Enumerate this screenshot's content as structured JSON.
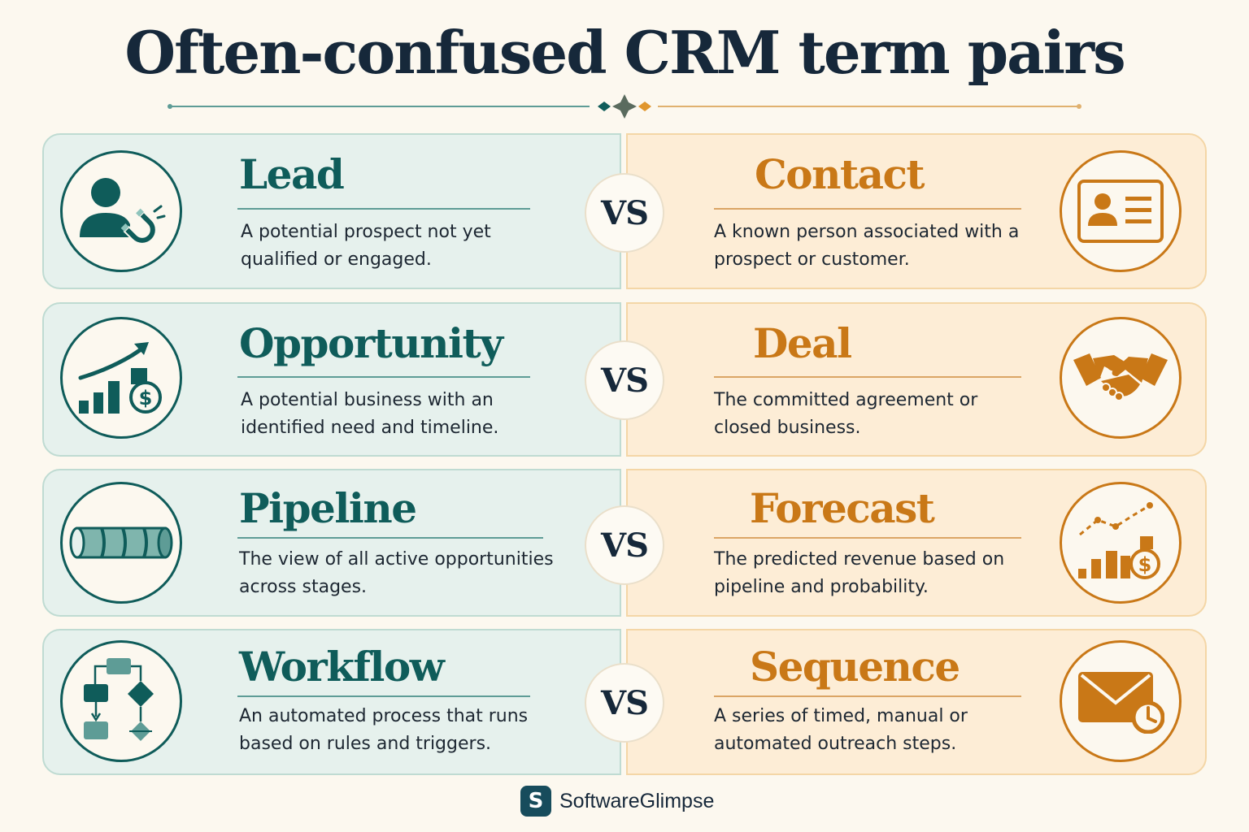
{
  "title": "Often-confused CRM term pairs",
  "colors": {
    "teal": "#0f5c5a",
    "orange": "#c97817",
    "navy": "#16283a"
  },
  "vs_label": "VS",
  "pairs": [
    {
      "left": {
        "term": "Lead",
        "description": "A potential prospect not yet qualified or engaged.",
        "icon": "person-magnet-icon"
      },
      "right": {
        "term": "Contact",
        "description": "A known person associated with a prospect or customer.",
        "icon": "contact-card-icon"
      }
    },
    {
      "left": {
        "term": "Opportunity",
        "description": "A potential business with an identified need and timeline.",
        "icon": "growth-chart-dollar-icon"
      },
      "right": {
        "term": "Deal",
        "description": "The committed agreement or closed business.",
        "icon": "handshake-icon"
      }
    },
    {
      "left": {
        "term": "Pipeline",
        "description": "The view of all active opportunities across stages.",
        "icon": "pipe-icon"
      },
      "right": {
        "term": "Forecast",
        "description": "The predicted revenue based on pipeline and probability.",
        "icon": "forecast-chart-dollar-icon"
      }
    },
    {
      "left": {
        "term": "Workflow",
        "description": "An automated process that runs based on rules and triggers.",
        "icon": "flowchart-icon"
      },
      "right": {
        "term": "Sequence",
        "description": "A series of timed, manual or automated outreach steps.",
        "icon": "envelope-clock-icon"
      }
    }
  ],
  "brand": {
    "logo_letter": "S",
    "name": "SoftwareGlimpse"
  }
}
